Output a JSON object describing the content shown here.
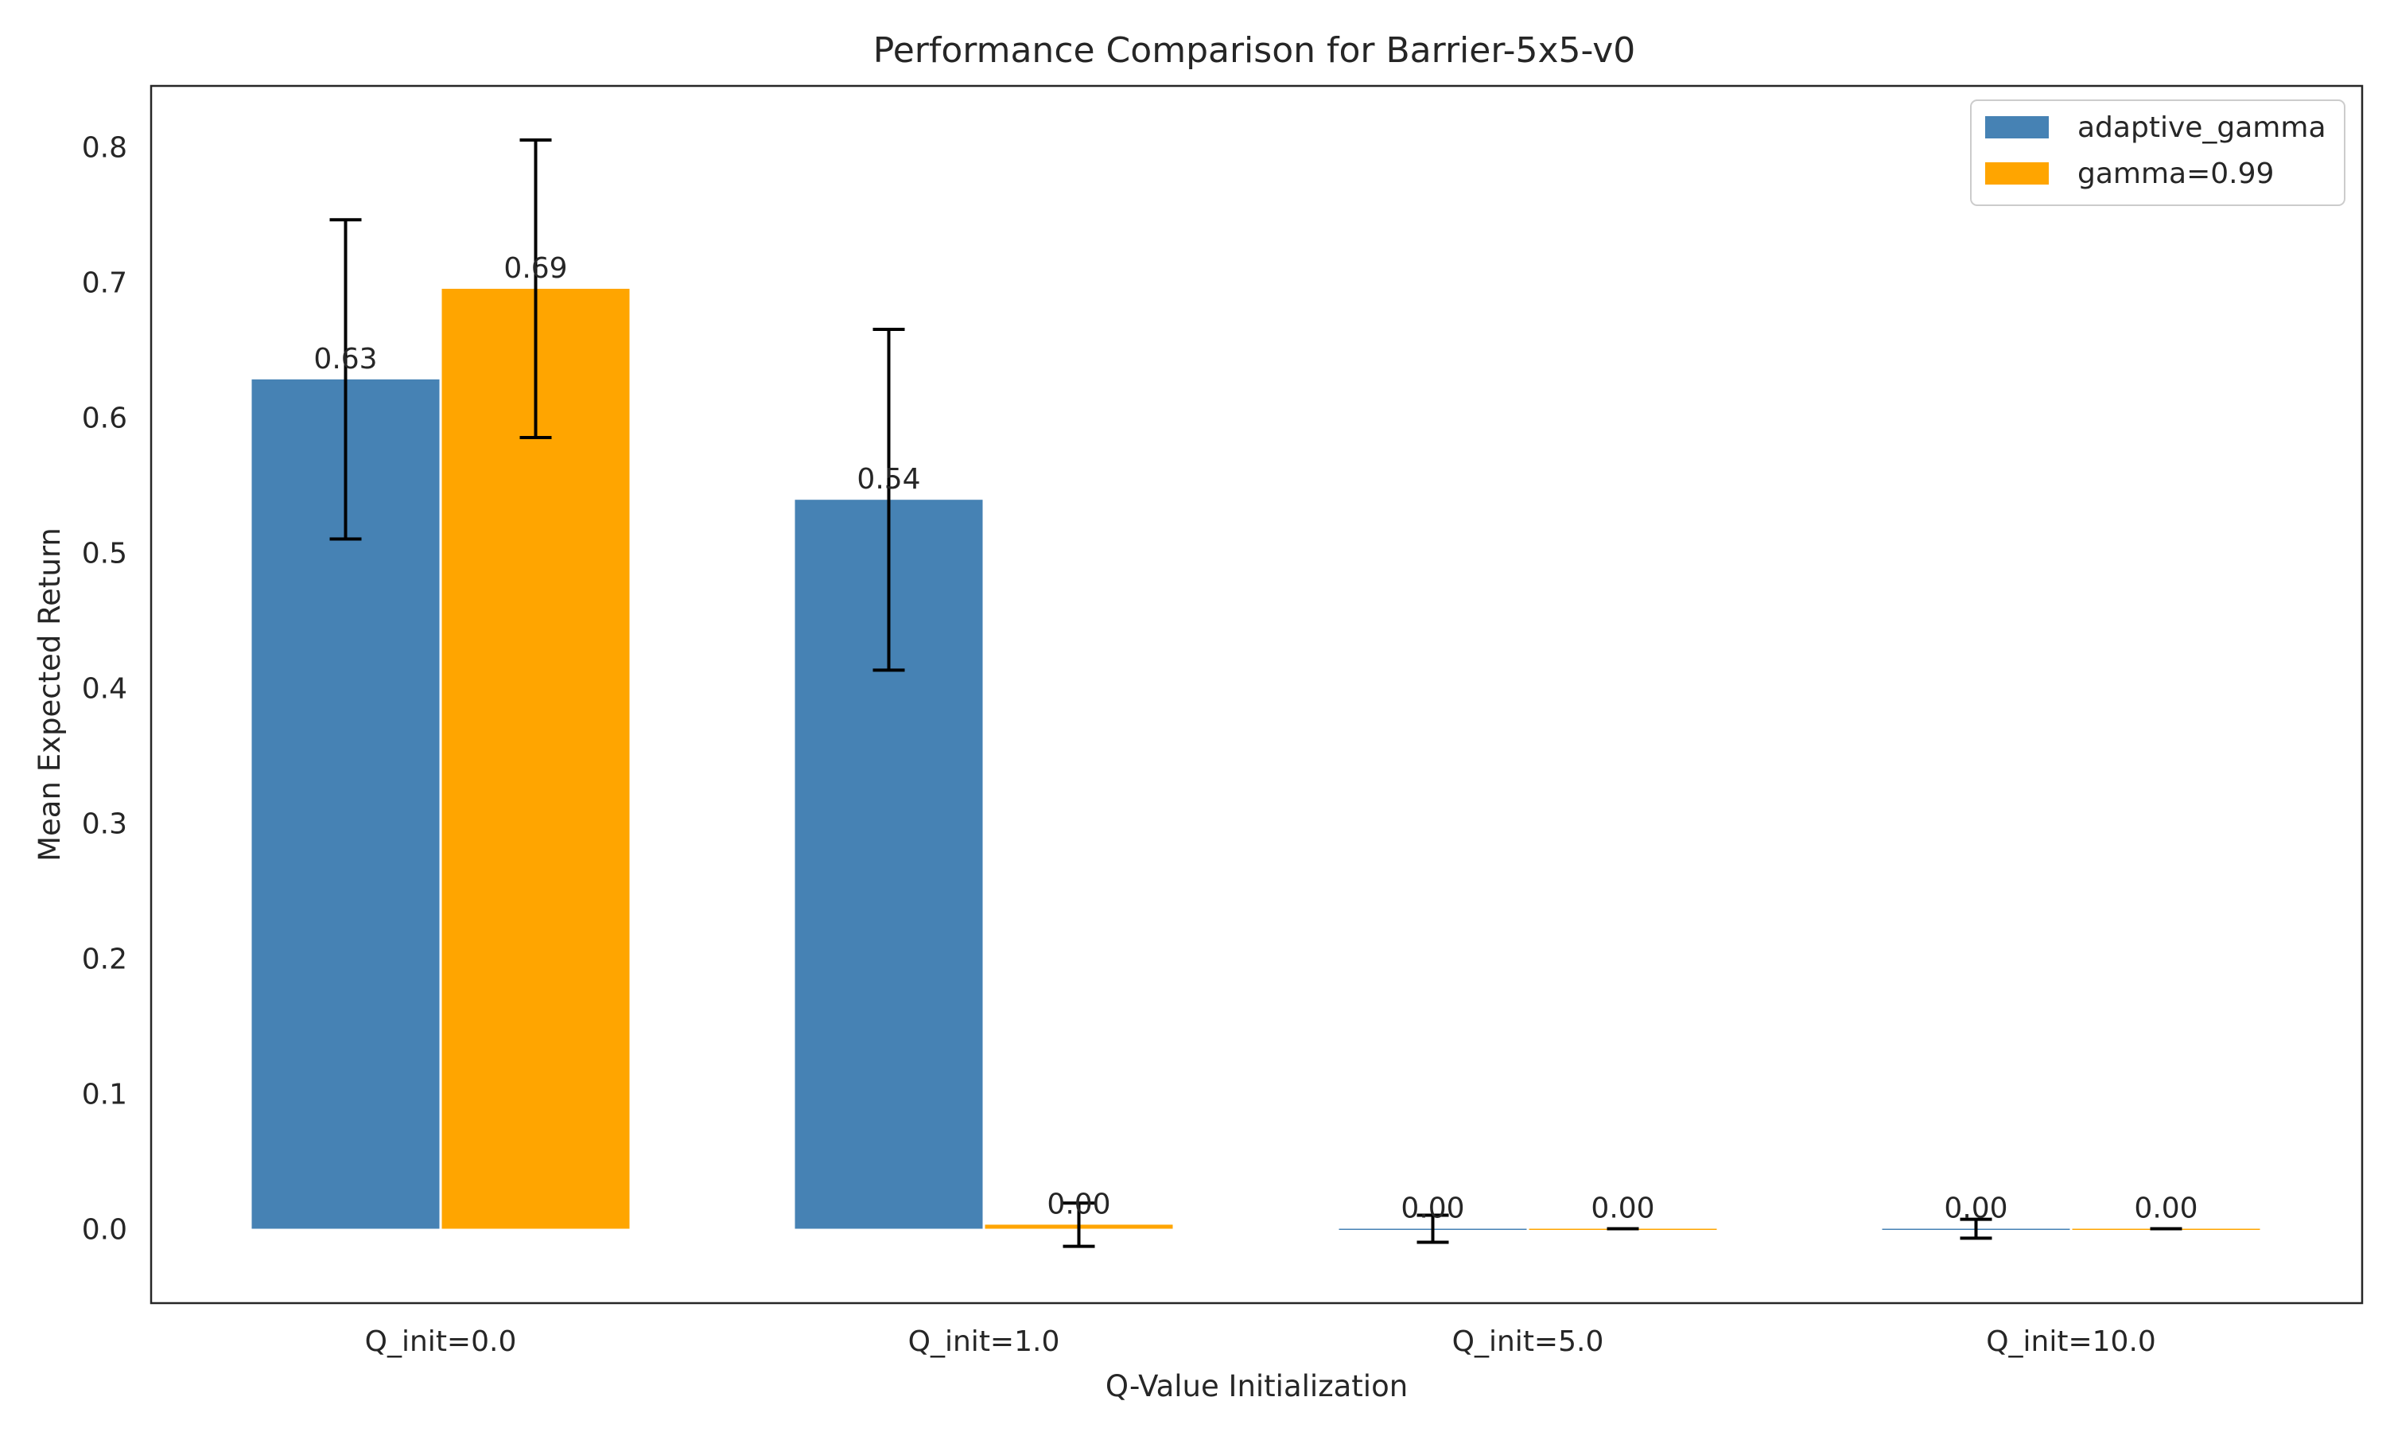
{
  "chart_data": {
    "type": "bar",
    "title": "Performance Comparison for Barrier-5x5-v0",
    "xlabel": "Q-Value Initialization",
    "ylabel": "Mean Expected Return",
    "categories": [
      "Q_init=0.0",
      "Q_init=1.0",
      "Q_init=5.0",
      "Q_init=10.0"
    ],
    "series": [
      {
        "name": "adaptive_gamma",
        "color": "#4682b4",
        "values": [
          0.628,
          0.539,
          0.0,
          0.0
        ],
        "errors": [
          0.118,
          0.126,
          0.01,
          0.007
        ],
        "labels": [
          "0.63",
          "0.54",
          "0.00",
          "0.00"
        ]
      },
      {
        "name": "gamma=0.99",
        "color": "#ffa500",
        "values": [
          0.695,
          0.003,
          0.0,
          0.0
        ],
        "errors": [
          0.11,
          0.016,
          0.0,
          0.0
        ],
        "labels": [
          "0.69",
          "0.00",
          "0.00",
          "0.00"
        ]
      }
    ],
    "ylim": [
      -0.055,
      0.845
    ],
    "yticks": [
      "0.0",
      "0.1",
      "0.2",
      "0.3",
      "0.4",
      "0.5",
      "0.6",
      "0.7",
      "0.8"
    ],
    "grid": false,
    "legend_position": "top-right"
  }
}
